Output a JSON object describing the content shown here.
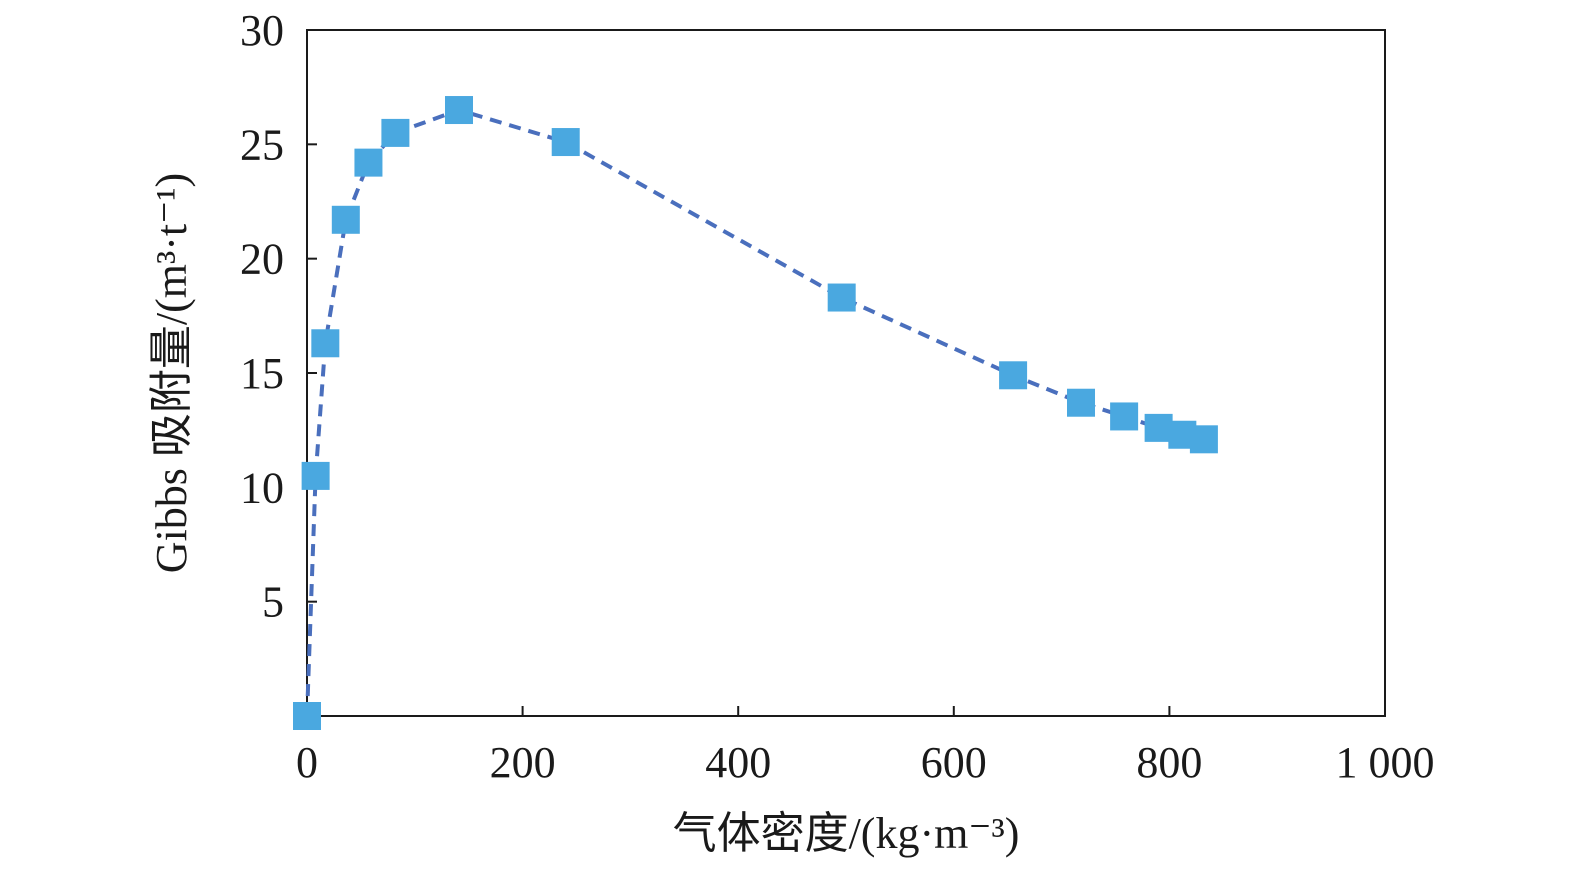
{
  "chart_data": {
    "type": "scatter",
    "title": "",
    "xlabel": "气体密度/(kg·m⁻³)",
    "ylabel": "Gibbs 吸附量/(m³·t⁻¹)",
    "xlim": [
      0,
      1000
    ],
    "ylim": [
      0,
      30
    ],
    "x_ticks": [
      0,
      200,
      400,
      600,
      800,
      1000
    ],
    "x_tick_labels": [
      "0",
      "200",
      "400",
      "600",
      "800",
      "1 000"
    ],
    "y_ticks": [
      5,
      10,
      15,
      20,
      25,
      30
    ],
    "y_tick_labels": [
      "5",
      "10",
      "15",
      "20",
      "25",
      "30"
    ],
    "grid": false,
    "legend": "none",
    "series": [
      {
        "style": "dashed line with square markers",
        "line_color": "#4a6fbd",
        "marker_color": "#4aa8e0",
        "x": [
          0,
          8,
          17,
          36,
          57,
          82,
          141,
          240,
          496,
          655,
          718,
          758,
          790,
          812,
          832
        ],
        "y": [
          0,
          10.5,
          16.3,
          21.7,
          24.2,
          25.5,
          26.5,
          25.1,
          18.3,
          14.9,
          13.7,
          13.1,
          12.6,
          12.3,
          12.1
        ]
      }
    ]
  }
}
